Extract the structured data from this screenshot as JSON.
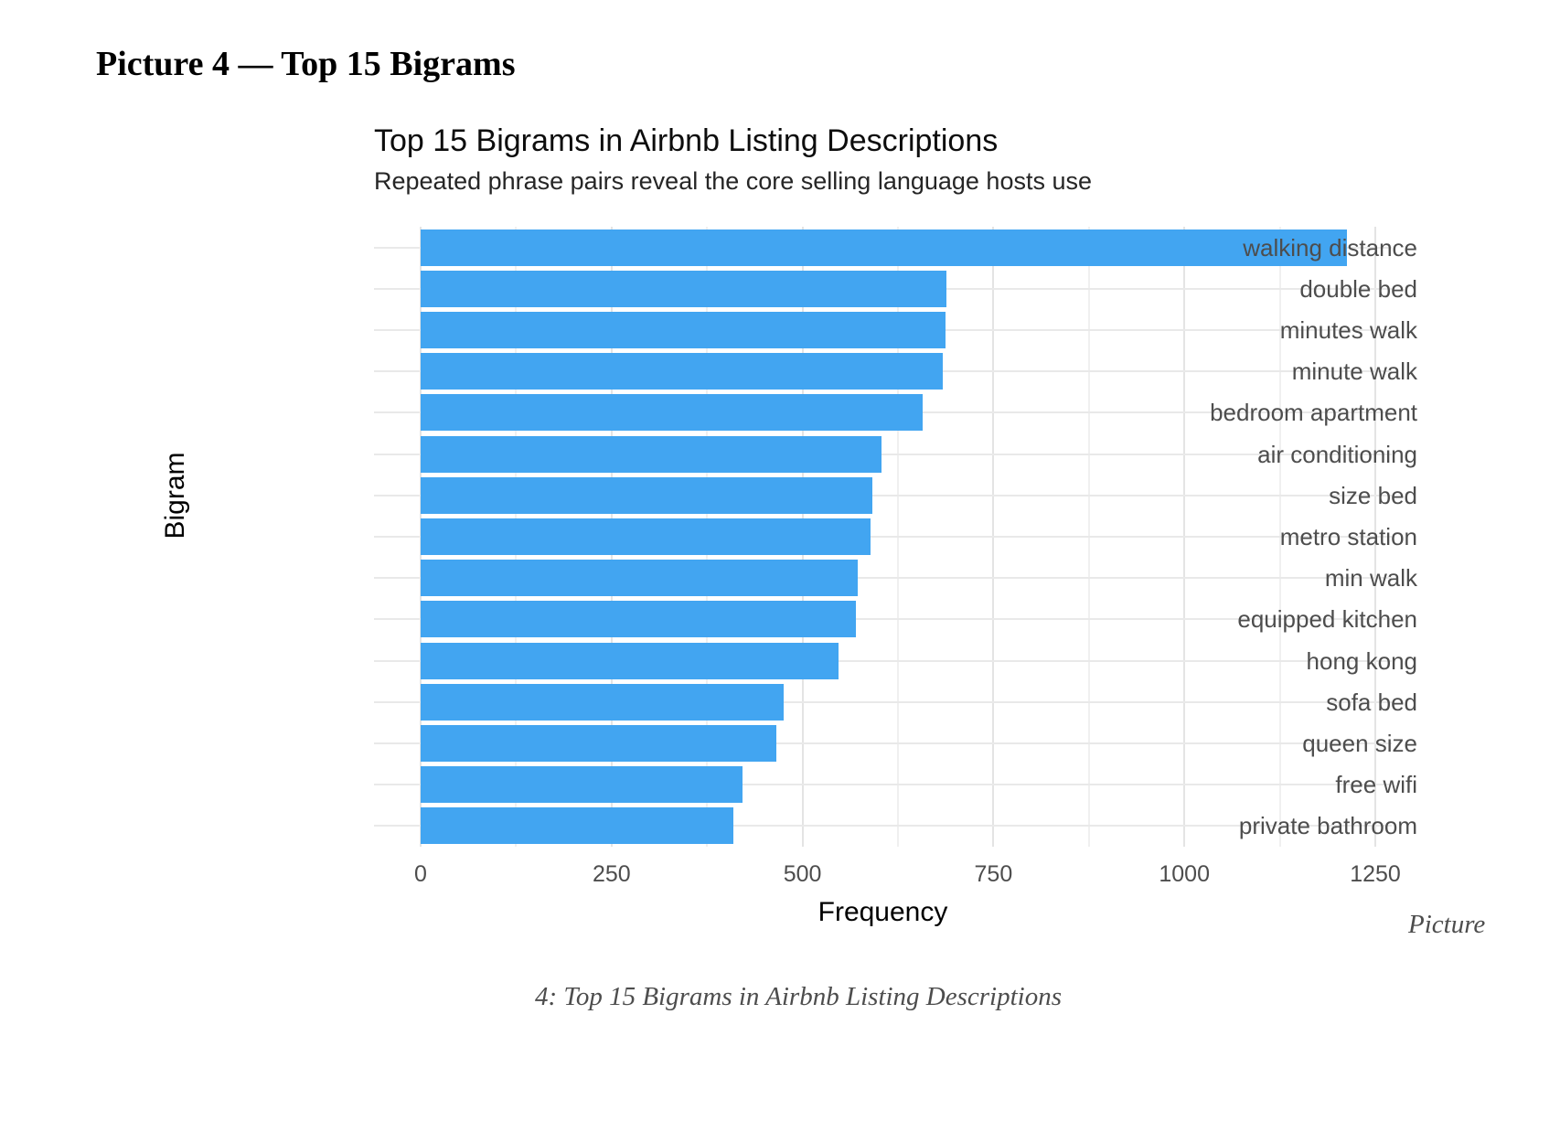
{
  "page": {
    "heading": "Picture 4 — Top 15 Bigrams",
    "caption_inline": "Picture",
    "caption_line": "4: Top 15 Bigrams in Airbnb Listing Descriptions"
  },
  "chart_data": {
    "type": "bar",
    "orientation": "horizontal",
    "title": "Top 15 Bigrams in Airbnb Listing Descriptions",
    "subtitle": "Repeated phrase pairs reveal the core selling language hosts use",
    "xlabel": "Frequency",
    "ylabel": "Bigram",
    "categories": [
      "walking distance",
      "double bed",
      "minutes walk",
      "minute walk",
      "bedroom apartment",
      "air conditioning",
      "size bed",
      "metro station",
      "min walk",
      "equipped kitchen",
      "hong kong",
      "sofa bed",
      "queen size",
      "free wifi",
      "private bathroom"
    ],
    "values": [
      1213,
      688,
      687,
      684,
      657,
      603,
      591,
      589,
      572,
      570,
      547,
      475,
      466,
      421,
      409
    ],
    "xlim": [
      0,
      1273
    ],
    "xticks": [
      0,
      250,
      500,
      750,
      1000,
      1250
    ],
    "xticks_minor": [
      125,
      375,
      625,
      875,
      1125
    ],
    "grid": true,
    "legend": false,
    "bar_color": "#42a5f1",
    "grid_major_color": "#e4e4e4",
    "grid_minor_color": "#f0f0f0",
    "tick_label_color": "#4d4d4d"
  }
}
